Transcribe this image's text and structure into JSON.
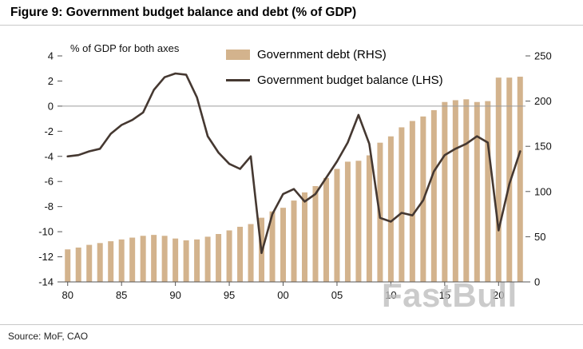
{
  "title": "Figure 9: Government budget balance and debt (% of GDP)",
  "source": "Source: MoF, CAO",
  "watermark": "FastBull",
  "colors": {
    "bar": "#d3b38d",
    "line": "#453831",
    "zero_line": "#9c9c9c",
    "axis": "#555555",
    "watermark": "#bdbdbd"
  },
  "chart_data": {
    "type": "combo",
    "title": "Government budget balance and debt (% of GDP)",
    "annotation": "% of GDP for both axes",
    "legend_position": "top",
    "grid": "zero-line only",
    "left_axis": {
      "min": -14,
      "max": 4,
      "ticks": [
        4,
        2,
        0,
        -2,
        -4,
        -6,
        -8,
        -10,
        -12,
        -14
      ]
    },
    "right_axis": {
      "min": 0,
      "max": 250,
      "ticks": [
        250,
        200,
        150,
        100,
        50,
        0
      ]
    },
    "x": [
      1980,
      1981,
      1982,
      1983,
      1984,
      1985,
      1986,
      1987,
      1988,
      1989,
      1990,
      1991,
      1992,
      1993,
      1994,
      1995,
      1996,
      1997,
      1998,
      1999,
      2000,
      2001,
      2002,
      2003,
      2004,
      2005,
      2006,
      2007,
      2008,
      2009,
      2010,
      2011,
      2012,
      2013,
      2014,
      2015,
      2016,
      2017,
      2018,
      2019,
      2020,
      2021,
      2022
    ],
    "x_tick_years": [
      1980,
      1985,
      1990,
      1995,
      2000,
      2005,
      2010,
      2015,
      2020
    ],
    "x_tick_labels": [
      "80",
      "85",
      "90",
      "95",
      "00",
      "05",
      "10",
      "15",
      "20"
    ],
    "series": [
      {
        "name": "Government debt (RHS)",
        "type": "bar",
        "axis": "right",
        "values": [
          36,
          38,
          41,
          43,
          45,
          47,
          49,
          51,
          52,
          51,
          48,
          46,
          47,
          50,
          53,
          57,
          61,
          64,
          71,
          78,
          82,
          90,
          99,
          106,
          115,
          125,
          133,
          134,
          140,
          154,
          161,
          171,
          178,
          183,
          190,
          199,
          201,
          202,
          199,
          200,
          226,
          226,
          227
        ]
      },
      {
        "name": "Government budget balance (LHS)",
        "type": "line",
        "axis": "left",
        "values": [
          -4.0,
          -3.9,
          -3.6,
          -3.4,
          -2.2,
          -1.5,
          -1.1,
          -0.5,
          1.3,
          2.3,
          2.6,
          2.5,
          0.7,
          -2.4,
          -3.7,
          -4.6,
          -5.0,
          -4.0,
          -11.7,
          -8.6,
          -7.0,
          -6.6,
          -7.6,
          -7.0,
          -5.7,
          -4.4,
          -2.9,
          -0.7,
          -3.0,
          -8.9,
          -9.2,
          -8.5,
          -8.7,
          -7.5,
          -5.2,
          -3.9,
          -3.4,
          -3.0,
          -2.4,
          -2.9,
          -9.9,
          -6.2,
          -3.6
        ]
      }
    ]
  }
}
